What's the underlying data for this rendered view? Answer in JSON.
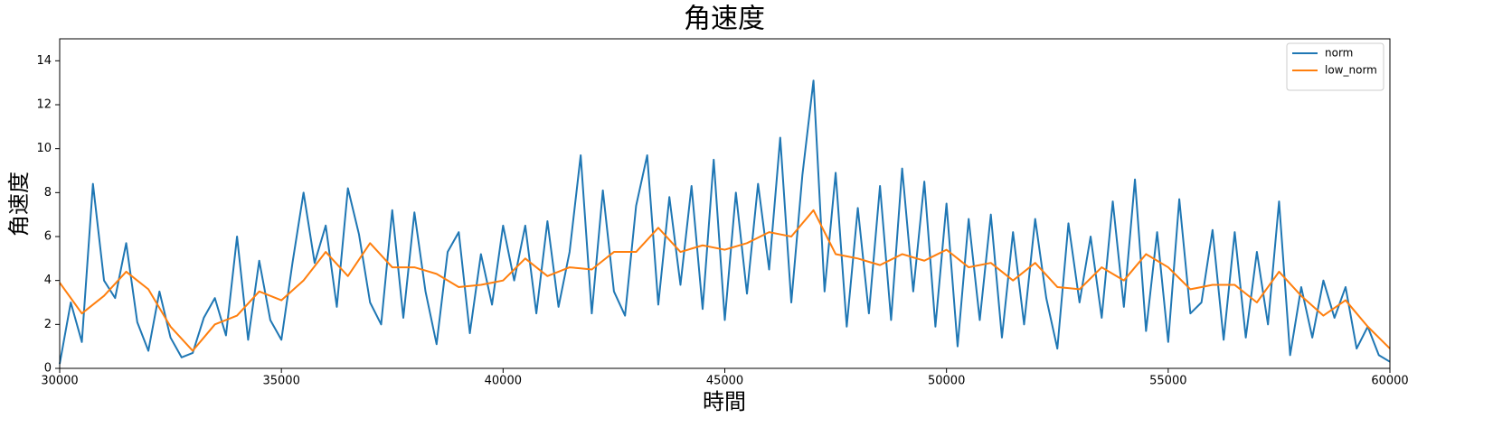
{
  "chart_data": {
    "type": "line",
    "title": "角速度",
    "x_label": "時間",
    "y_label": "角速度",
    "x": [
      30000,
      30250,
      30500,
      30750,
      31000,
      31250,
      31500,
      31750,
      32000,
      32250,
      32500,
      32750,
      33000,
      33250,
      33500,
      33750,
      34000,
      34250,
      34500,
      34750,
      35000,
      35250,
      35500,
      35750,
      36000,
      36250,
      36500,
      36750,
      37000,
      37250,
      37500,
      37750,
      38000,
      38250,
      38500,
      38750,
      39000,
      39250,
      39500,
      39750,
      40000,
      40250,
      40500,
      40750,
      41000,
      41250,
      41500,
      41750,
      42000,
      42250,
      42500,
      42750,
      43000,
      43250,
      43500,
      43750,
      44000,
      44250,
      44500,
      44750,
      45000,
      45250,
      45500,
      45750,
      46000,
      46250,
      46500,
      46750,
      47000,
      47250,
      47500,
      47750,
      48000,
      48250,
      48500,
      48750,
      49000,
      49250,
      49500,
      49750,
      50000,
      50250,
      50500,
      50750,
      51000,
      51250,
      51500,
      51750,
      52000,
      52250,
      52500,
      52750,
      53000,
      53250,
      53500,
      53750,
      54000,
      54250,
      54500,
      54750,
      55000,
      55250,
      55500,
      55750,
      56000,
      56250,
      56500,
      56750,
      57000,
      57250,
      57500,
      57750,
      58000,
      58250,
      58500,
      58750,
      59000,
      59250,
      59500,
      59750,
      60000
    ],
    "series": [
      {
        "name": "norm",
        "color": "#1f77b4",
        "values": [
          0.2,
          3.0,
          1.2,
          8.4,
          4.0,
          3.2,
          5.7,
          2.1,
          0.8,
          3.5,
          1.4,
          0.5,
          0.7,
          2.3,
          3.2,
          1.5,
          6.0,
          1.3,
          4.9,
          2.2,
          1.3,
          4.8,
          8.0,
          4.8,
          6.5,
          2.8,
          8.2,
          6.1,
          3.0,
          2.0,
          7.2,
          2.3,
          7.1,
          3.5,
          1.1,
          5.3,
          6.2,
          1.6,
          5.2,
          2.9,
          6.5,
          4.0,
          6.5,
          2.5,
          6.7,
          2.8,
          5.3,
          9.7,
          2.5,
          8.1,
          3.5,
          2.4,
          7.4,
          9.7,
          2.9,
          7.8,
          3.8,
          8.3,
          2.7,
          9.5,
          2.2,
          8.0,
          3.4,
          8.4,
          4.5,
          10.5,
          3.0,
          8.8,
          13.1,
          3.5,
          8.9,
          1.9,
          7.3,
          2.5,
          8.3,
          2.2,
          9.1,
          3.5,
          8.5,
          1.9,
          7.5,
          1.0,
          6.8,
          2.2,
          7.0,
          1.4,
          6.2,
          2.0,
          6.8,
          3.2,
          0.9,
          6.6,
          3.0,
          6.0,
          2.3,
          7.6,
          2.8,
          8.6,
          1.7,
          6.2,
          1.2,
          7.7,
          2.5,
          3.0,
          6.3,
          1.3,
          6.2,
          1.4,
          5.3,
          2.0,
          7.6,
          0.6,
          3.7,
          1.4,
          4.0,
          2.3,
          3.7,
          0.9,
          1.9,
          0.6,
          0.3
        ]
      },
      {
        "name": "low_norm",
        "color": "#ff7f0e",
        "values": [
          3.9,
          3.2,
          2.5,
          2.9,
          3.3,
          3.85,
          4.4,
          4.0,
          3.6,
          2.75,
          1.9,
          1.35,
          0.8,
          1.4,
          2.0,
          2.2,
          2.4,
          2.95,
          3.5,
          3.3,
          3.1,
          3.55,
          4.0,
          4.65,
          5.3,
          4.75,
          4.2,
          4.95,
          5.7,
          5.15,
          4.6,
          4.6,
          4.6,
          4.45,
          4.3,
          4.0,
          3.7,
          3.75,
          3.8,
          3.9,
          4.0,
          4.5,
          5.0,
          4.6,
          4.2,
          4.4,
          4.6,
          4.55,
          4.5,
          4.9,
          5.3,
          5.3,
          5.3,
          5.85,
          6.4,
          5.85,
          5.3,
          5.45,
          5.6,
          5.5,
          5.4,
          5.55,
          5.7,
          5.95,
          6.2,
          6.1,
          6.0,
          6.6,
          7.2,
          6.2,
          5.2,
          5.1,
          5.0,
          4.85,
          4.7,
          4.95,
          5.2,
          5.05,
          4.9,
          5.15,
          5.4,
          5.0,
          4.6,
          4.7,
          4.8,
          4.4,
          4.0,
          4.4,
          4.8,
          4.25,
          3.7,
          3.65,
          3.6,
          4.1,
          4.6,
          4.3,
          4.0,
          4.6,
          5.2,
          4.9,
          4.6,
          4.1,
          3.6,
          3.7,
          3.8,
          3.8,
          3.8,
          3.4,
          3.0,
          3.7,
          4.4,
          3.85,
          3.3,
          2.85,
          2.4,
          2.75,
          3.1,
          2.5,
          1.9,
          1.4,
          0.9
        ]
      }
    ],
    "xlim": [
      30000,
      60000
    ],
    "xticks": [
      30000,
      35000,
      40000,
      45000,
      50000,
      55000,
      60000
    ],
    "ylim": [
      0,
      15
    ],
    "yticks": [
      0,
      2,
      4,
      6,
      8,
      10,
      12,
      14
    ],
    "grid": false,
    "legend": "upper right"
  }
}
